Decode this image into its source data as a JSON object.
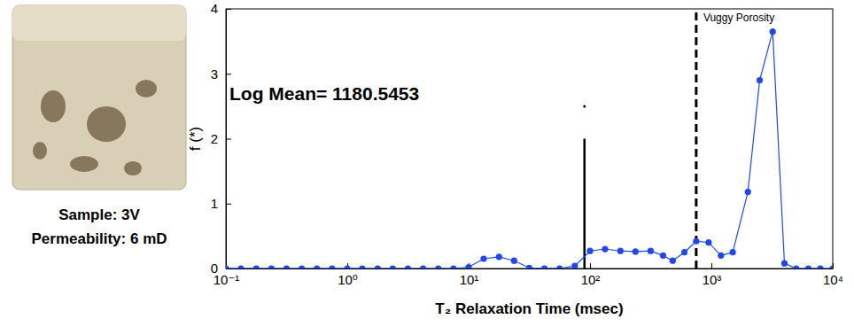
{
  "chart_data": {
    "type": "line",
    "sample_labels": [
      "Sample: 3V",
      "Permeability: 6 mD"
    ],
    "xlabel": "T₂ Relaxation Time (msec)",
    "ylabel": "f (*)",
    "log": "x",
    "marker": "circle",
    "line_style": "solid",
    "color": "#2048e8",
    "xlim": [
      0.1,
      10000
    ],
    "ylim": [
      0,
      4
    ],
    "xticks": [
      {
        "value": 0.1,
        "label": "10⁻¹"
      },
      {
        "value": 1,
        "label": "10⁰"
      },
      {
        "value": 10,
        "label": "10¹"
      },
      {
        "value": 100,
        "label": "10²"
      },
      {
        "value": 1000,
        "label": "10³"
      },
      {
        "value": 10000,
        "label": "10⁴"
      }
    ],
    "yticks": [
      0,
      1,
      2,
      3,
      4
    ],
    "x": [
      0.1,
      0.133,
      0.178,
      0.237,
      0.316,
      0.422,
      0.562,
      0.75,
      1,
      1.33,
      1.78,
      2.37,
      3.16,
      4.22,
      5.62,
      7.5,
      10,
      13.3,
      17.8,
      23.7,
      31.6,
      42.2,
      56.2,
      75,
      100,
      133,
      178,
      237,
      316,
      400,
      480,
      600,
      750,
      950,
      1200,
      1500,
      2000,
      2500,
      3200,
      4000,
      5000,
      6300,
      7900,
      10000
    ],
    "values": [
      0,
      0,
      0,
      0,
      0,
      0,
      0,
      0,
      0,
      0,
      0,
      0,
      0,
      0,
      0,
      0,
      0.02,
      0.15,
      0.18,
      0.12,
      0.01,
      0,
      0,
      0.04,
      0.27,
      0.3,
      0.27,
      0.26,
      0.27,
      0.2,
      0.12,
      0.25,
      0.42,
      0.4,
      0.2,
      0.25,
      1.18,
      2.9,
      3.65,
      0.08,
      0,
      0,
      0,
      0
    ],
    "cutoffs": [
      {
        "x": 90,
        "y": [
          0,
          2
        ],
        "line_style": "solid"
      },
      {
        "x": 750,
        "y": [
          0,
          4
        ],
        "line_style": "dashed"
      }
    ],
    "dot": {
      "x": 90,
      "y": 2.5
    },
    "annotations": [
      {
        "text": "Log Mean= 1180.5453"
      },
      {
        "text": "Vuggy Porosity"
      }
    ]
  }
}
